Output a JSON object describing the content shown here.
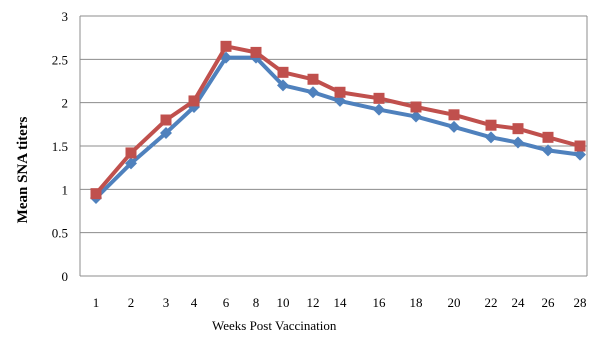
{
  "chart_data": {
    "type": "line",
    "title": "",
    "xlabel": "Weeks Post Vaccination",
    "ylabel": "Mean SNA titers",
    "ylim": [
      0,
      3
    ],
    "yticks": [
      "0",
      "0.5",
      "1",
      "1.5",
      "2",
      "2.5",
      "3"
    ],
    "categories": [
      "1",
      "2",
      "3",
      "4",
      "6",
      "8",
      "10",
      "12",
      "14",
      "16",
      "18",
      "20",
      "22",
      "24",
      "26",
      "28"
    ],
    "tick_labels": [
      "1",
      "2",
      "3",
      "4",
      "6",
      "8",
      "10",
      "12",
      "14",
      "16",
      "18",
      "20",
      "22",
      "24",
      "26",
      "28"
    ],
    "grid": true,
    "legend": "none",
    "series": [
      {
        "color": "#4f81bd",
        "marker": "diamond",
        "values": [
          0.9,
          1.3,
          1.65,
          1.95,
          2.52,
          2.52,
          2.2,
          2.12,
          2.02,
          1.92,
          1.84,
          1.72,
          1.6,
          1.54,
          1.45,
          1.4
        ]
      },
      {
        "color": "#c0504d",
        "marker": "square",
        "values": [
          0.95,
          1.42,
          1.8,
          2.02,
          2.65,
          2.58,
          2.35,
          2.27,
          2.12,
          2.05,
          1.95,
          1.86,
          1.74,
          1.7,
          1.6,
          1.5
        ]
      }
    ]
  }
}
